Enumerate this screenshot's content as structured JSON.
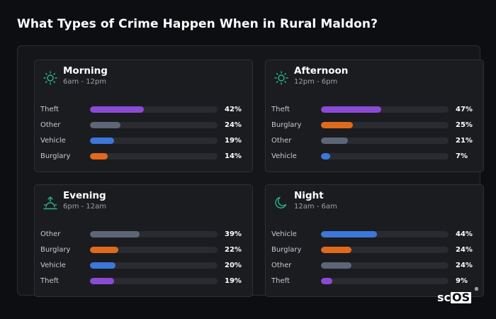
{
  "title": "What Types of Crime Happen When in Rural Maldon?",
  "colors": {
    "Theft": "#8b4ad6",
    "Other": "#5d6677",
    "Vehicle": "#3c77d9",
    "Burglary": "#e06a1c",
    "icon": "#27b587"
  },
  "logo": {
    "text": "sc",
    "boxed": "OS",
    "mark": "®"
  },
  "chart_data": [
    {
      "type": "bar",
      "name": "Morning",
      "time": "6am - 12pm",
      "icon": "sun-icon",
      "categories": [
        "Theft",
        "Other",
        "Vehicle",
        "Burglary"
      ],
      "values": [
        42,
        24,
        19,
        14
      ],
      "labels": [
        "42%",
        "24%",
        "19%",
        "14%"
      ],
      "xlim": [
        0,
        100
      ]
    },
    {
      "type": "bar",
      "name": "Afternoon",
      "time": "12pm - 6pm",
      "icon": "sun-icon",
      "categories": [
        "Theft",
        "Burglary",
        "Other",
        "Vehicle"
      ],
      "values": [
        47,
        25,
        21,
        7
      ],
      "labels": [
        "47%",
        "25%",
        "21%",
        "7%"
      ],
      "xlim": [
        0,
        100
      ]
    },
    {
      "type": "bar",
      "name": "Evening",
      "time": "6pm - 12am",
      "icon": "sunset-icon",
      "categories": [
        "Other",
        "Burglary",
        "Vehicle",
        "Theft"
      ],
      "values": [
        39,
        22,
        20,
        19
      ],
      "labels": [
        "39%",
        "22%",
        "20%",
        "19%"
      ],
      "xlim": [
        0,
        100
      ]
    },
    {
      "type": "bar",
      "name": "Night",
      "time": "12am - 6am",
      "icon": "moon-icon",
      "categories": [
        "Vehicle",
        "Burglary",
        "Other",
        "Theft"
      ],
      "values": [
        44,
        24,
        24,
        9
      ],
      "labels": [
        "44%",
        "24%",
        "24%",
        "9%"
      ],
      "xlim": [
        0,
        100
      ]
    }
  ]
}
